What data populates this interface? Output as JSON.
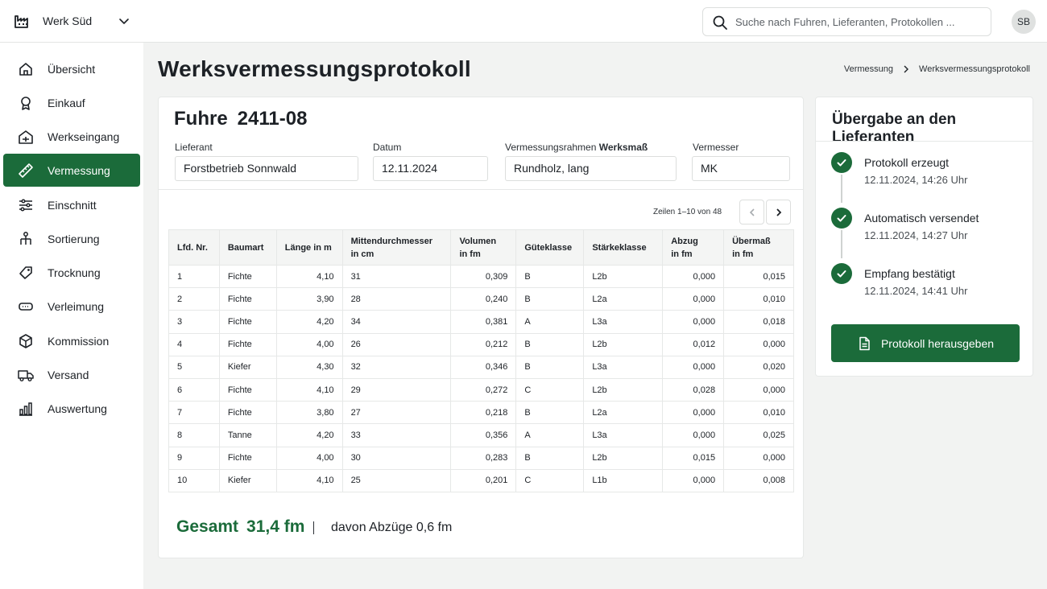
{
  "topbar": {
    "plant_name": "Werk Süd",
    "search_placeholder": "Suche nach Fuhren, Lieferanten, Protokollen ...",
    "avatar_initials": "SB"
  },
  "sidebar": {
    "items": [
      {
        "label": "Übersicht",
        "icon": "home-icon"
      },
      {
        "label": "Einkauf",
        "icon": "purchase-icon"
      },
      {
        "label": "Werkseingang",
        "icon": "entrance-icon"
      },
      {
        "label": "Vermessung",
        "icon": "ruler-icon",
        "active": true
      },
      {
        "label": "Einschnitt",
        "icon": "sliders-icon"
      },
      {
        "label": "Sortierung",
        "icon": "sorting-icon"
      },
      {
        "label": "Trocknung",
        "icon": "drying-icon"
      },
      {
        "label": "Verleimung",
        "icon": "glue-icon"
      },
      {
        "label": "Kommission",
        "icon": "box-icon"
      },
      {
        "label": "Versand",
        "icon": "truck-icon"
      },
      {
        "label": "Auswertung",
        "icon": "chart-icon"
      }
    ]
  },
  "page": {
    "title": "Werksvermessungsprotokoll",
    "breadcrumb": [
      "Vermessung",
      "Werksvermessungsprotokoll"
    ]
  },
  "delivery": {
    "title_label": "Fuhre",
    "number": "2411-08",
    "supplier_label": "Lieferant",
    "supplier": "Forstbetrieb Sonnwald",
    "date_label": "Datum",
    "date": "12.11.2024",
    "frame_label": "Vermessungsrahmen",
    "frame_label_bold": "Werksmaß",
    "frame": "Rundholz, lang",
    "surveyor_label": "Vermesser",
    "surveyor": "MK"
  },
  "table": {
    "rows_info": "Zeilen 1–10 von 48",
    "headers": [
      [
        "Lfd. Nr."
      ],
      [
        "Baumart"
      ],
      [
        "Länge in m"
      ],
      [
        "Mittendurchmesser",
        "in cm"
      ],
      [
        "Volumen",
        "in fm"
      ],
      [
        "Güteklasse"
      ],
      [
        "Stärkeklasse"
      ],
      [
        "Abzug",
        "in fm"
      ],
      [
        "Übermaß",
        "in fm"
      ]
    ],
    "rows": [
      [
        "1",
        "Fichte",
        "4,10",
        "31",
        "0,309",
        "B",
        "L2b",
        "0,000",
        "0,015"
      ],
      [
        "2",
        "Fichte",
        "3,90",
        "28",
        "0,240",
        "B",
        "L2a",
        "0,000",
        "0,010"
      ],
      [
        "3",
        "Fichte",
        "4,20",
        "34",
        "0,381",
        "A",
        "L3a",
        "0,000",
        "0,018"
      ],
      [
        "4",
        "Fichte",
        "4,00",
        "26",
        "0,212",
        "B",
        "L2b",
        "0,012",
        "0,000"
      ],
      [
        "5",
        "Kiefer",
        "4,30",
        "32",
        "0,346",
        "B",
        "L3a",
        "0,000",
        "0,020"
      ],
      [
        "6",
        "Fichte",
        "4,10",
        "29",
        "0,272",
        "C",
        "L2b",
        "0,028",
        "0,000"
      ],
      [
        "7",
        "Fichte",
        "3,80",
        "27",
        "0,218",
        "B",
        "L2a",
        "0,000",
        "0,010"
      ],
      [
        "8",
        "Tanne",
        "4,20",
        "33",
        "0,356",
        "A",
        "L3a",
        "0,000",
        "0,025"
      ],
      [
        "9",
        "Fichte",
        "4,00",
        "30",
        "0,283",
        "B",
        "L2b",
        "0,015",
        "0,000"
      ],
      [
        "10",
        "Kiefer",
        "4,10",
        "25",
        "0,201",
        "C",
        "L1b",
        "0,000",
        "0,008"
      ]
    ]
  },
  "summary": {
    "total_label": "Gesamt",
    "total_value": "31,4 fm",
    "deductions": "davon Abzüge 0,6 fm"
  },
  "handover": {
    "title": "Übergabe an den Lieferanten",
    "steps": [
      {
        "title": "Protokoll erzeugt",
        "time": "12.11.2024, 14:26 Uhr"
      },
      {
        "title": "Automatisch versendet",
        "time": "12.11.2024, 14:27 Uhr"
      },
      {
        "title": "Empfang bestätigt",
        "time": "12.11.2024, 14:41 Uhr"
      }
    ],
    "button_label": "Protokoll herausgeben"
  },
  "colors": {
    "accent": "#1b6b3a",
    "background": "#f2f3f2"
  }
}
